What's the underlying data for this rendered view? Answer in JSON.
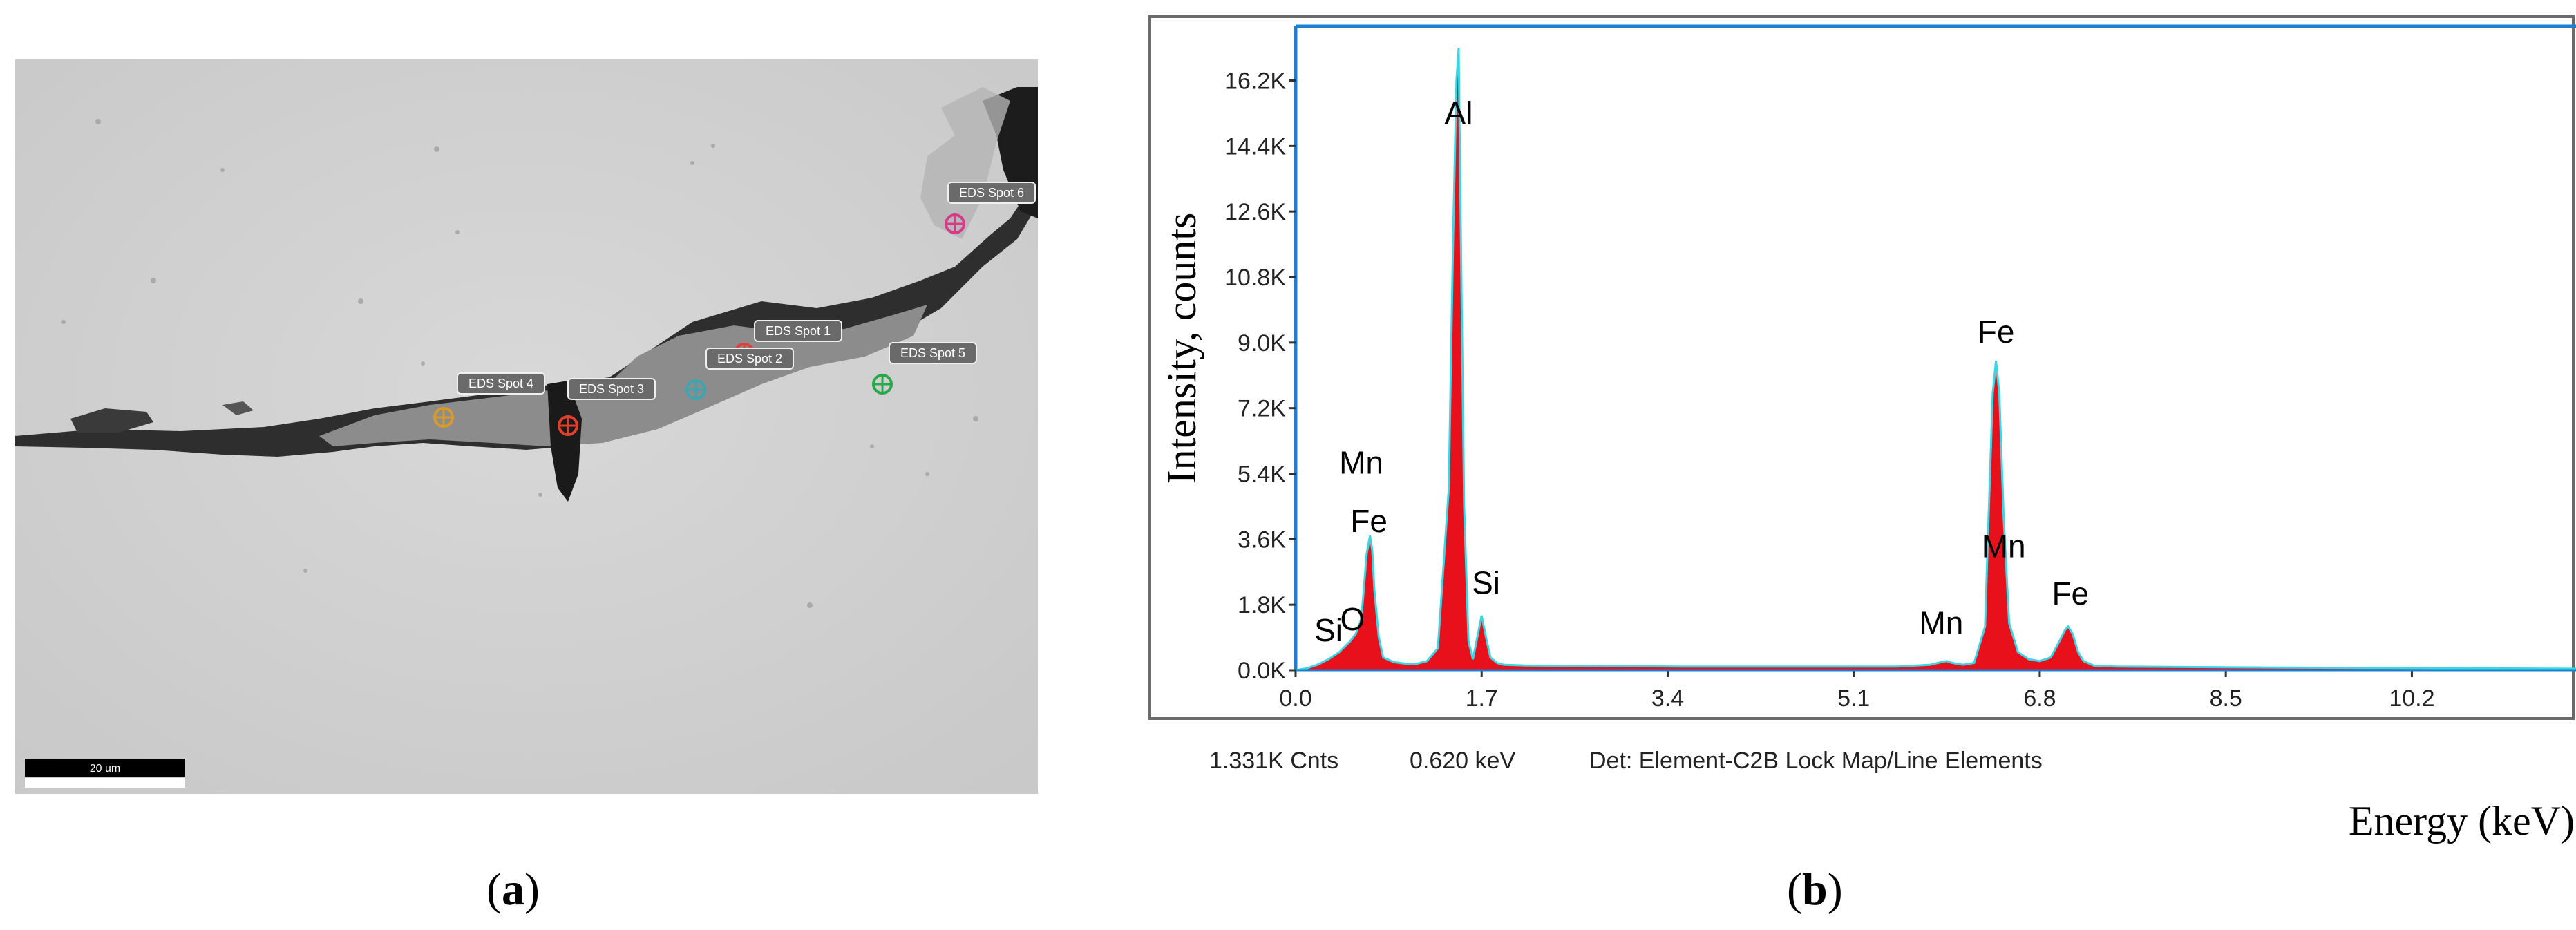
{
  "panel_a": {
    "caption_letter": "a",
    "scale_bar_label": "20 um",
    "spots": [
      {
        "label": "EDS Spot 1",
        "color": "#e0403a"
      },
      {
        "label": "EDS Spot 2",
        "color": "#3aa6b0"
      },
      {
        "label": "EDS Spot 3",
        "color": "#e0402a"
      },
      {
        "label": "EDS Spot 4",
        "color": "#d99a2a"
      },
      {
        "label": "EDS Spot 5",
        "color": "#28a84a"
      },
      {
        "label": "EDS Spot 6",
        "color": "#d83a8a"
      }
    ]
  },
  "panel_b": {
    "caption_letter": "b",
    "footer": {
      "counts": "1.331K Cnts",
      "energy": "0.620 keV",
      "detector": "Det: Element-C2B Lock Map/Line Elements"
    }
  },
  "chart_data": {
    "type": "line",
    "title": "",
    "xlabel": "Energy (keV)",
    "ylabel": "Intensity, counts",
    "xlim": [
      0,
      11.7
    ],
    "ylim": [
      0,
      17500
    ],
    "x_ticks": [
      "0.0",
      "1.7",
      "3.4",
      "5.1",
      "6.8",
      "8.5",
      "10.2"
    ],
    "x_tick_values": [
      0,
      1.7,
      3.4,
      5.1,
      6.8,
      8.5,
      10.2
    ],
    "y_ticks": [
      "0.0K",
      "1.8K",
      "3.6K",
      "5.4K",
      "7.2K",
      "9.0K",
      "10.8K",
      "12.6K",
      "14.4K",
      "16.2K"
    ],
    "y_tick_values": [
      0,
      1800,
      3600,
      5400,
      7200,
      9000,
      10800,
      12600,
      14400,
      16200
    ],
    "grid": false,
    "fill_color": "#e8101a",
    "line_color": "#39d6e6",
    "series": [
      {
        "x": [
          0.0,
          0.1,
          0.2,
          0.3,
          0.4,
          0.45,
          0.5,
          0.55,
          0.6,
          0.62,
          0.65,
          0.68,
          0.7,
          0.72,
          0.76,
          0.8,
          0.9,
          1.0,
          1.1,
          1.2,
          1.3,
          1.4,
          1.44,
          1.47,
          1.49,
          1.51,
          1.54,
          1.58,
          1.62,
          1.66,
          1.7,
          1.74,
          1.78,
          1.84,
          1.9,
          2.1,
          2.5,
          3.0,
          3.5,
          4.0,
          4.5,
          5.0,
          5.5,
          5.8,
          5.9,
          5.95,
          6.0,
          6.1,
          6.2,
          6.3,
          6.33,
          6.37,
          6.4,
          6.43,
          6.47,
          6.52,
          6.6,
          6.7,
          6.8,
          6.9,
          6.98,
          7.03,
          7.06,
          7.1,
          7.15,
          7.2,
          7.3,
          7.5,
          8.0,
          9.0,
          10.0,
          11.0,
          11.7
        ],
        "y": [
          0,
          50,
          150,
          300,
          500,
          650,
          800,
          1000,
          1400,
          2100,
          3200,
          3700,
          3300,
          2200,
          900,
          350,
          220,
          180,
          170,
          250,
          600,
          5000,
          12000,
          16200,
          17100,
          12000,
          4500,
          800,
          300,
          900,
          1500,
          900,
          350,
          200,
          150,
          130,
          120,
          110,
          100,
          100,
          100,
          100,
          100,
          150,
          220,
          250,
          200,
          150,
          200,
          1200,
          4000,
          7600,
          8500,
          7600,
          4200,
          1300,
          500,
          300,
          250,
          350,
          800,
          1100,
          1200,
          1000,
          500,
          250,
          120,
          100,
          90,
          70,
          60,
          50,
          40
        ]
      }
    ],
    "annotations": [
      {
        "text": "Al",
        "x": 1.49,
        "y": 15000
      },
      {
        "text": "Fe",
        "x": 6.4,
        "y": 9000
      },
      {
        "text": "Mn",
        "x": 0.6,
        "y": 5400
      },
      {
        "text": "Fe",
        "x": 0.67,
        "y": 3800
      },
      {
        "text": "Si",
        "x": 1.74,
        "y": 2100
      },
      {
        "text": "Mn",
        "x": 6.47,
        "y": 3100
      },
      {
        "text": "Fe",
        "x": 7.08,
        "y": 1800
      },
      {
        "text": "Mn",
        "x": 5.9,
        "y": 1000
      },
      {
        "text": "Si",
        "x": 0.3,
        "y": 800
      },
      {
        "text": "O",
        "x": 0.52,
        "y": 1100
      }
    ]
  }
}
